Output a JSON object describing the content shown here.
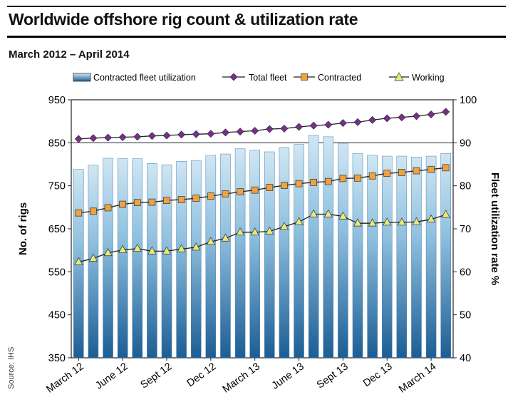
{
  "chart_data": {
    "type": "bar",
    "title": "Worldwide offshore rig count & utilization rate",
    "subtitle": "March 2012 – April 2014",
    "ylabel": "No. of rigs",
    "y2label": "Fleet utilization rate %",
    "ylim": [
      350,
      950
    ],
    "y2lim": [
      40,
      100
    ],
    "yticks": [
      "350",
      "450",
      "550",
      "650",
      "750",
      "850",
      "950"
    ],
    "y2ticks": [
      "40",
      "50",
      "60",
      "70",
      "80",
      "90",
      "100"
    ],
    "xtick_labels": [
      "March 12",
      "June 12",
      "Sept 12",
      "Dec 12",
      "March 13",
      "June 13",
      "Sept 13",
      "Dec 13",
      "March 14"
    ],
    "source": "Source: IHS",
    "legend": {
      "position": "top",
      "entries": [
        "Contracted fleet utilization",
        "Total fleet",
        "Contracted",
        "Working"
      ]
    },
    "colors": {
      "bar_top": "#cfe6f3",
      "bar_bottom": "#1c5d94",
      "total_fleet": "#7a2f8c",
      "contracted": "#f0a23e",
      "working": "#e7ea78",
      "line": "#222222"
    },
    "series": [
      {
        "name": "Contracted fleet utilization",
        "axis": "right",
        "kind": "bar",
        "values": [
          83.8,
          84.8,
          86.4,
          86.3,
          86.3,
          85.2,
          84.9,
          85.7,
          85.9,
          87.1,
          87.4,
          88.6,
          88.3,
          87.9,
          88.9,
          89.6,
          91.7,
          91.4,
          89.9,
          87.5,
          87.1,
          86.9,
          86.9,
          86.7,
          86.9,
          87.5
        ]
      },
      {
        "name": "Total fleet",
        "axis": "left",
        "kind": "line",
        "values": [
          859,
          861,
          862,
          863,
          864,
          866,
          867,
          869,
          870,
          871,
          874,
          876,
          878,
          882,
          883,
          887,
          890,
          892,
          896,
          898,
          903,
          907,
          909,
          912,
          916,
          922
        ]
      },
      {
        "name": "Contracted",
        "axis": "left",
        "kind": "line",
        "values": [
          687,
          691,
          699,
          707,
          711,
          712,
          716,
          718,
          721,
          726,
          731,
          736,
          740,
          746,
          751,
          755,
          758,
          760,
          767,
          768,
          773,
          779,
          781,
          785,
          788,
          792
        ]
      },
      {
        "name": "Working",
        "axis": "left",
        "kind": "line",
        "values": [
          573,
          581,
          594,
          601,
          604,
          598,
          598,
          603,
          607,
          620,
          628,
          642,
          642,
          644,
          655,
          666,
          684,
          684,
          679,
          663,
          663,
          665,
          665,
          666,
          672,
          683
        ]
      }
    ]
  }
}
